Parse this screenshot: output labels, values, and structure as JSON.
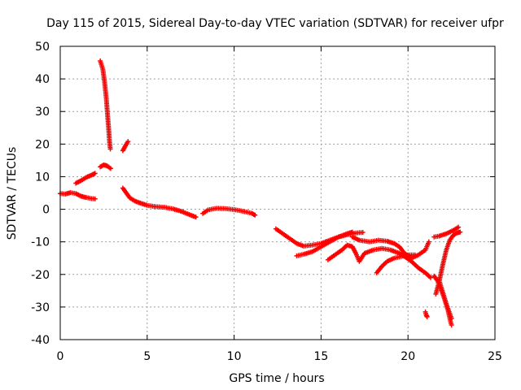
{
  "chart_data": {
    "type": "scatter",
    "title": "Day 115 of 2015, Sidereal Day-to-day VTEC variation (SDTVAR) for receiver ufpr",
    "xlabel": "GPS time / hours",
    "ylabel": "SDTVAR / TECUs",
    "xlim": [
      0,
      25
    ],
    "ylim": [
      -40,
      50
    ],
    "xticks": [
      0,
      5,
      10,
      15,
      20,
      25
    ],
    "yticks": [
      -40,
      -30,
      -20,
      -10,
      0,
      10,
      20,
      30,
      40,
      50
    ],
    "grid": true,
    "marker": "+",
    "color": "#ff0000",
    "series": [
      {
        "name": "segment-a",
        "points": [
          [
            0.0,
            4.8
          ],
          [
            0.3,
            4.7
          ],
          [
            0.6,
            5.1
          ],
          [
            0.9,
            4.8
          ],
          [
            1.2,
            4.0
          ],
          [
            1.5,
            3.6
          ],
          [
            1.8,
            3.3
          ],
          [
            2.0,
            3.2
          ]
        ]
      },
      {
        "name": "segment-b",
        "points": [
          [
            0.9,
            8.0
          ],
          [
            1.2,
            8.8
          ],
          [
            1.5,
            9.8
          ],
          [
            1.8,
            10.5
          ],
          [
            2.0,
            11.0
          ]
        ]
      },
      {
        "name": "segment-c",
        "points": [
          [
            2.3,
            45.5
          ],
          [
            2.45,
            43.0
          ],
          [
            2.55,
            39.0
          ],
          [
            2.65,
            34.0
          ],
          [
            2.72,
            29.0
          ],
          [
            2.78,
            25.0
          ],
          [
            2.83,
            21.0
          ],
          [
            2.88,
            18.5
          ]
        ]
      },
      {
        "name": "segment-d",
        "points": [
          [
            2.3,
            13.0
          ],
          [
            2.5,
            13.6
          ],
          [
            2.7,
            13.3
          ],
          [
            2.9,
            12.5
          ]
        ]
      },
      {
        "name": "segment-e",
        "points": [
          [
            3.6,
            18.0
          ],
          [
            3.75,
            19.5
          ],
          [
            3.9,
            20.8
          ]
        ]
      },
      {
        "name": "segment-f",
        "points": [
          [
            3.6,
            6.5
          ],
          [
            3.8,
            5.0
          ],
          [
            4.0,
            3.5
          ],
          [
            4.3,
            2.5
          ],
          [
            4.6,
            1.9
          ],
          [
            5.0,
            1.2
          ],
          [
            5.5,
            0.8
          ],
          [
            6.0,
            0.6
          ],
          [
            6.5,
            0.1
          ],
          [
            7.0,
            -0.7
          ],
          [
            7.5,
            -1.8
          ],
          [
            7.8,
            -2.4
          ]
        ]
      },
      {
        "name": "segment-g",
        "points": [
          [
            8.2,
            -1.3
          ],
          [
            8.5,
            -0.2
          ],
          [
            9.0,
            0.3
          ],
          [
            9.5,
            0.2
          ],
          [
            10.0,
            -0.1
          ],
          [
            10.5,
            -0.6
          ],
          [
            11.0,
            -1.2
          ],
          [
            11.2,
            -1.8
          ]
        ]
      },
      {
        "name": "segment-h",
        "points": [
          [
            12.4,
            -6.0
          ],
          [
            12.8,
            -7.5
          ],
          [
            13.2,
            -9.0
          ],
          [
            13.6,
            -10.5
          ],
          [
            14.0,
            -11.3
          ],
          [
            14.5,
            -11.0
          ],
          [
            15.0,
            -10.5
          ],
          [
            15.5,
            -9.5
          ],
          [
            16.0,
            -8.5
          ],
          [
            16.5,
            -7.8
          ],
          [
            17.0,
            -7.3
          ],
          [
            17.4,
            -7.1
          ]
        ]
      },
      {
        "name": "segment-i",
        "points": [
          [
            13.6,
            -14.3
          ],
          [
            14.0,
            -13.8
          ],
          [
            14.5,
            -13.0
          ],
          [
            15.0,
            -11.5
          ],
          [
            15.5,
            -10.0
          ],
          [
            16.0,
            -8.5
          ],
          [
            16.5,
            -7.5
          ],
          [
            16.8,
            -7.0
          ]
        ]
      },
      {
        "name": "segment-j",
        "points": [
          [
            15.4,
            -15.5
          ],
          [
            15.8,
            -14.0
          ],
          [
            16.2,
            -12.5
          ],
          [
            16.5,
            -11.0
          ],
          [
            16.8,
            -11.5
          ],
          [
            17.0,
            -13.5
          ],
          [
            17.2,
            -16.0
          ],
          [
            17.5,
            -13.5
          ],
          [
            18.0,
            -12.5
          ],
          [
            18.5,
            -12.0
          ],
          [
            19.0,
            -12.5
          ],
          [
            19.5,
            -13.5
          ],
          [
            19.8,
            -14.5
          ],
          [
            20.2,
            -16.0
          ],
          [
            20.6,
            -18.0
          ],
          [
            21.0,
            -19.5
          ],
          [
            21.3,
            -21.0
          ]
        ]
      },
      {
        "name": "segment-k",
        "points": [
          [
            16.8,
            -8.5
          ],
          [
            17.2,
            -9.5
          ],
          [
            17.8,
            -10.0
          ],
          [
            18.3,
            -9.5
          ],
          [
            18.8,
            -9.8
          ],
          [
            19.2,
            -10.5
          ],
          [
            19.5,
            -11.5
          ],
          [
            19.8,
            -13.5
          ],
          [
            20.2,
            -15.0
          ],
          [
            20.6,
            -14.0
          ],
          [
            21.0,
            -12.5
          ],
          [
            21.2,
            -10.0
          ]
        ]
      },
      {
        "name": "segment-l",
        "points": [
          [
            18.2,
            -19.5
          ],
          [
            18.5,
            -17.5
          ],
          [
            18.8,
            -16.0
          ],
          [
            19.2,
            -15.0
          ],
          [
            19.6,
            -14.5
          ],
          [
            20.0,
            -14.0
          ],
          [
            20.4,
            -14.0
          ]
        ]
      },
      {
        "name": "segment-m",
        "points": [
          [
            21.5,
            -20.5
          ],
          [
            21.7,
            -22.0
          ],
          [
            21.9,
            -24.5
          ],
          [
            22.1,
            -27.5
          ],
          [
            22.3,
            -31.0
          ],
          [
            22.45,
            -34.5
          ],
          [
            22.5,
            -35.5
          ]
        ]
      },
      {
        "name": "segment-n",
        "points": [
          [
            21.8,
            -22.0
          ],
          [
            22.0,
            -25.5
          ],
          [
            22.2,
            -29.0
          ],
          [
            22.4,
            -32.0
          ],
          [
            22.5,
            -33.5
          ]
        ]
      },
      {
        "name": "segment-o",
        "points": [
          [
            21.6,
            -26.0
          ],
          [
            21.8,
            -22.0
          ],
          [
            22.0,
            -17.0
          ],
          [
            22.2,
            -12.5
          ],
          [
            22.4,
            -9.5
          ],
          [
            22.6,
            -8.0
          ],
          [
            22.8,
            -7.3
          ],
          [
            23.0,
            -7.0
          ]
        ]
      },
      {
        "name": "segment-p",
        "points": [
          [
            21.5,
            -8.5
          ],
          [
            21.8,
            -8.2
          ],
          [
            22.2,
            -7.5
          ],
          [
            22.6,
            -6.5
          ],
          [
            22.9,
            -5.5
          ]
        ]
      },
      {
        "name": "segment-q",
        "points": [
          [
            21.0,
            -31.5
          ],
          [
            21.05,
            -32.5
          ],
          [
            21.1,
            -33.0
          ]
        ]
      }
    ]
  }
}
